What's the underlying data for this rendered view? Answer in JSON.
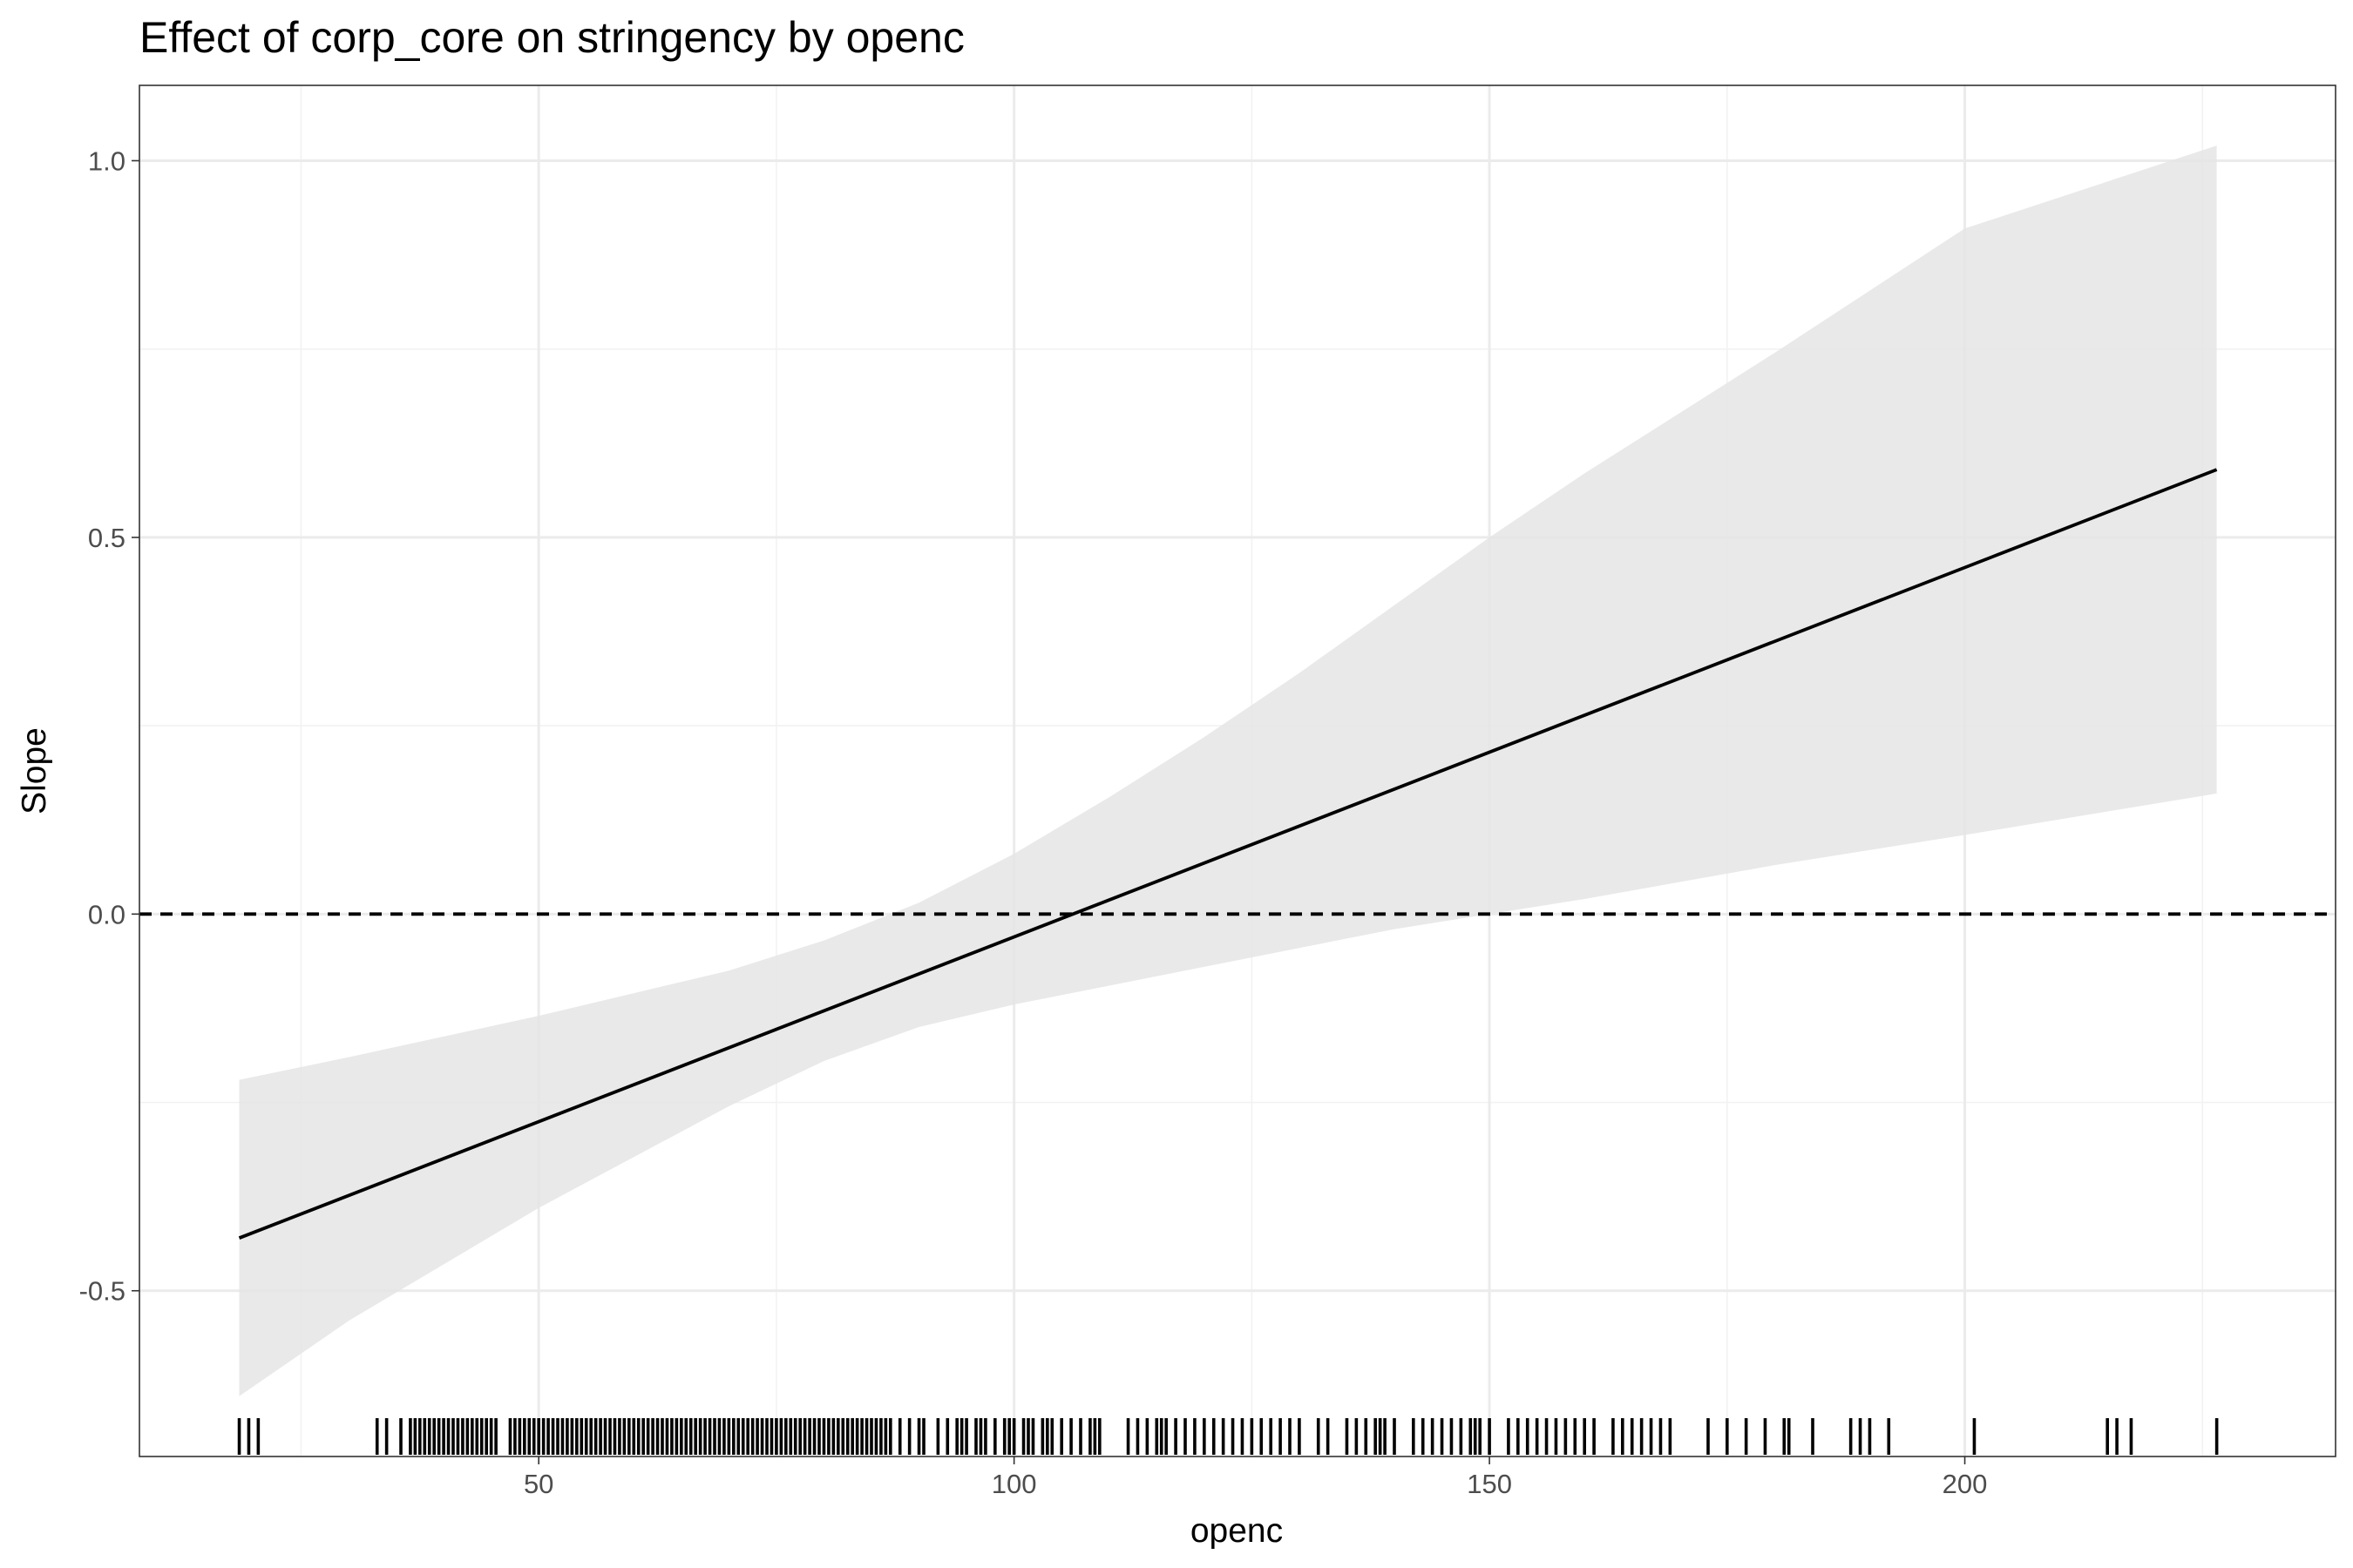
{
  "chart_data": {
    "type": "line",
    "title": "Effect of corp_core on stringency by openc",
    "xlabel": "openc",
    "ylabel": "Slope",
    "xlim": [
      8,
      239
    ],
    "ylim": [
      -0.72,
      1.1
    ],
    "x_ticks": [
      50,
      100,
      150,
      200
    ],
    "x_tick_labels": [
      "50",
      "100",
      "150",
      "200"
    ],
    "y_ticks": [
      -0.5,
      0,
      0.5,
      1
    ],
    "y_tick_labels": [
      "-0.5",
      "0.0",
      "0.5",
      "1.0"
    ],
    "x_minor_ticks": [
      25,
      75,
      125,
      175,
      225
    ],
    "y_minor_ticks": [
      -0.25,
      0.25,
      0.75
    ],
    "grid": true,
    "series": [
      {
        "kind": "line",
        "x": [
          18.5,
          226.5
        ],
        "y": [
          -0.43,
          0.59
        ]
      }
    ],
    "ribbon": {
      "x": [
        18.5,
        30,
        50,
        70,
        80,
        90,
        100,
        110,
        120,
        130,
        140,
        150,
        160,
        180,
        200,
        226.5
      ],
      "upper": [
        -0.22,
        -0.19,
        -0.135,
        -0.075,
        -0.035,
        0.015,
        0.08,
        0.155,
        0.235,
        0.32,
        0.41,
        0.5,
        0.585,
        0.745,
        0.91,
        1.02
      ],
      "lower": [
        -0.64,
        -0.54,
        -0.39,
        -0.255,
        -0.195,
        -0.15,
        -0.12,
        -0.095,
        -0.07,
        -0.045,
        -0.02,
        0.0,
        0.02,
        0.065,
        0.105,
        0.16
      ]
    },
    "reference_line": {
      "y": 0,
      "style": "dashed"
    },
    "rug": {
      "axis": "x",
      "values": [
        18.5,
        19.5,
        20.5,
        33,
        34,
        35.5,
        36.5,
        37,
        37.5,
        38,
        38.5,
        39,
        39.5,
        40,
        40.5,
        41,
        41.5,
        42,
        42.5,
        43,
        43.5,
        44,
        44.5,
        45,
        45.5,
        47,
        47.5,
        48,
        48.5,
        49,
        49.5,
        50,
        50.5,
        51,
        51.5,
        52,
        52.5,
        53,
        53.5,
        54,
        54.5,
        55,
        55.5,
        56,
        56.5,
        57,
        57.5,
        58,
        58.5,
        59,
        59.5,
        60,
        60.5,
        61,
        61.5,
        62,
        62.5,
        63,
        63.5,
        64,
        64.5,
        65,
        65.5,
        66,
        66.5,
        67,
        67.5,
        68,
        68.5,
        69,
        69.5,
        70,
        70.5,
        71,
        71.5,
        72,
        72.5,
        73,
        73.5,
        74,
        74.5,
        75,
        75.5,
        76,
        76.5,
        77,
        77.5,
        78,
        78.5,
        79,
        79.5,
        80,
        80.5,
        81,
        81.5,
        82,
        82.5,
        83,
        83.5,
        84,
        84.5,
        85,
        85.5,
        86,
        86.5,
        87,
        88,
        89,
        90,
        90.5,
        92,
        93,
        94,
        94.5,
        95,
        96,
        96.5,
        97,
        98,
        99,
        99.5,
        100,
        101,
        101.5,
        102,
        103,
        103.5,
        104,
        105,
        106,
        107,
        108,
        108.5,
        109,
        112,
        113,
        114,
        115,
        115.5,
        116,
        117,
        118,
        119,
        120,
        121,
        122,
        123,
        124,
        125,
        126,
        127,
        128,
        129,
        130,
        132,
        133,
        135,
        136,
        137,
        138,
        138.5,
        139,
        140,
        142,
        143,
        144,
        145,
        146,
        147,
        148,
        148.5,
        149,
        150,
        152,
        153,
        154,
        155,
        156,
        157,
        158,
        159,
        160,
        161,
        163,
        164,
        165,
        166,
        167,
        168,
        169,
        173,
        175,
        177,
        179,
        181,
        181.5,
        184,
        188,
        189,
        190,
        192,
        201,
        215,
        216,
        217.5,
        226.5
      ]
    }
  }
}
